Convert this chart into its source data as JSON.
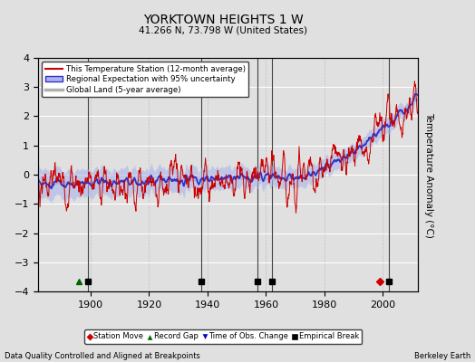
{
  "title": "YORKTOWN HEIGHTS 1 W",
  "subtitle": "41.266 N, 73.798 W (United States)",
  "ylabel": "Temperature Anomaly (°C)",
  "xlabel_note": "Data Quality Controlled and Aligned at Breakpoints",
  "credit": "Berkeley Earth",
  "year_start": 1880,
  "year_end": 2011,
  "ylim": [
    -4,
    4
  ],
  "bg_color": "#e0e0e0",
  "plot_bg_color": "#e0e0e0",
  "grid_color": "#ffffff",
  "station_move_years": [
    1999
  ],
  "record_gap_years": [
    1896
  ],
  "obs_change_years": [],
  "empirical_break_years": [
    1899,
    1938,
    1957,
    1962,
    2002
  ],
  "tick_years": [
    1900,
    1920,
    1940,
    1960,
    1980,
    2000
  ],
  "xlim_start": 1882,
  "xlim_end": 2012
}
